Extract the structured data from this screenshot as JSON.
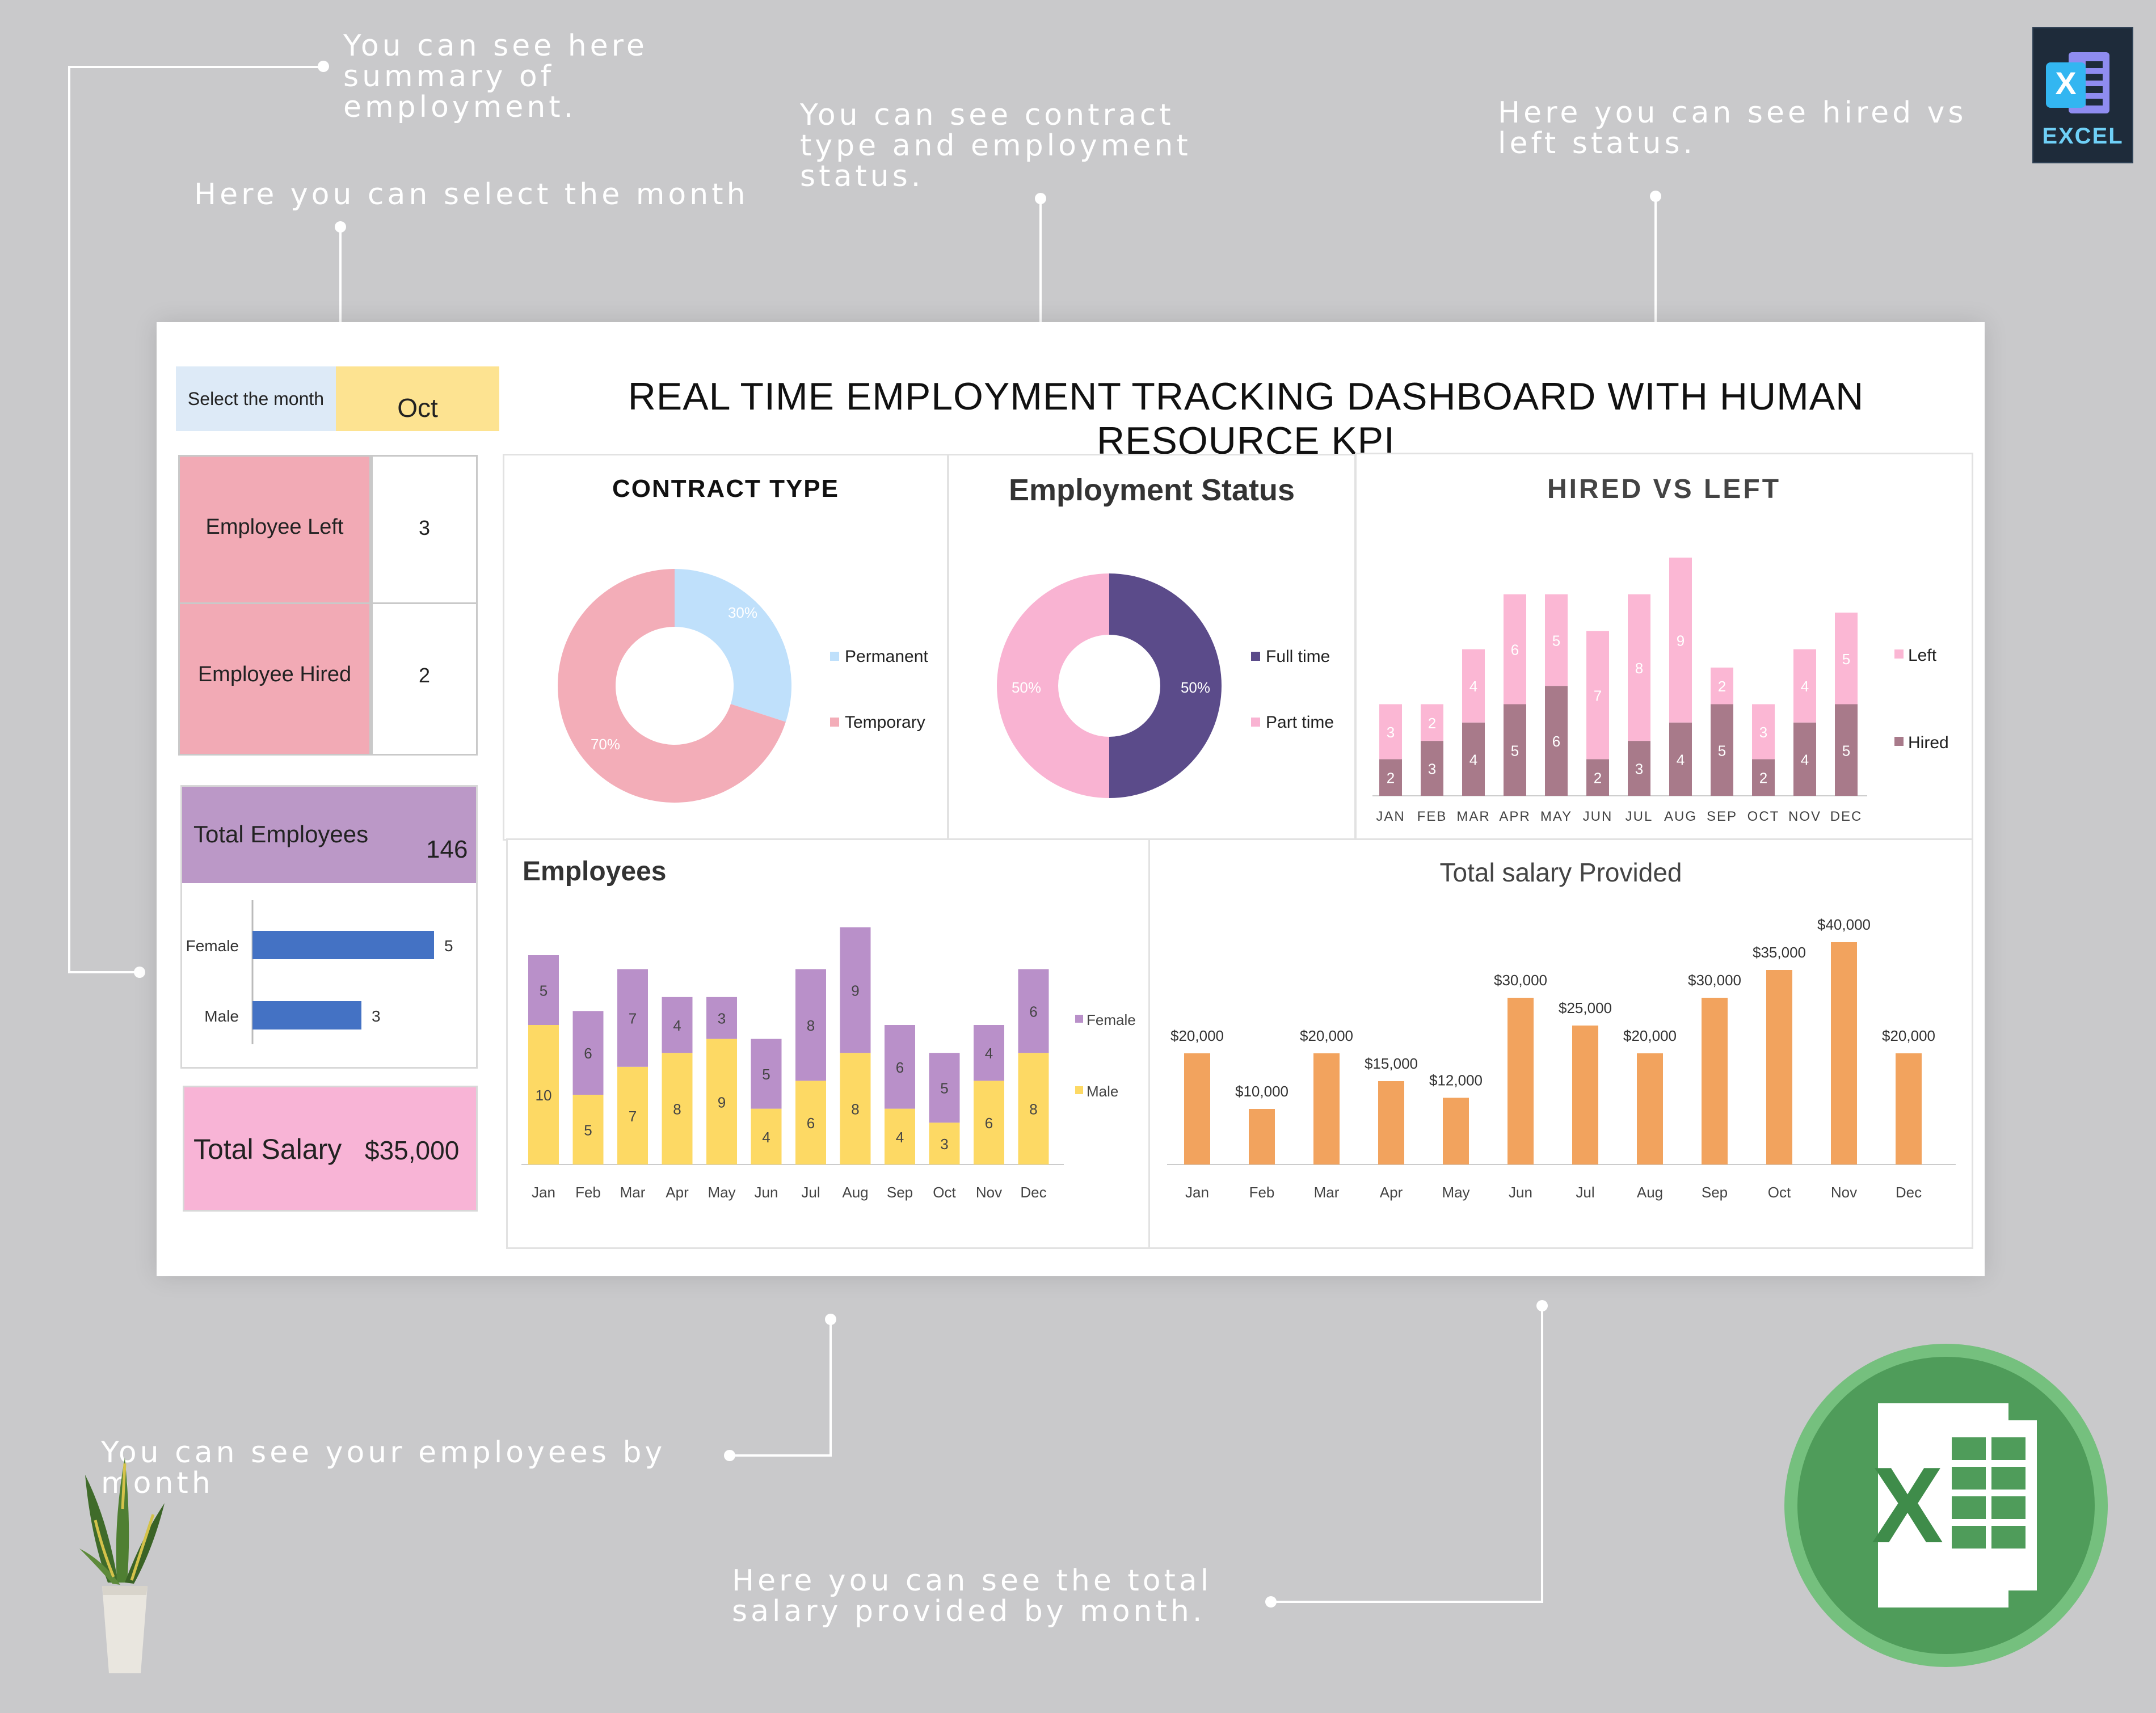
{
  "callouts": {
    "summary": "You can see here summary of employment.",
    "select_month": "Here you can select the month",
    "contract": "You can see contract type and employment status.",
    "hired_left": "Here you can see hired vs left status.",
    "employees_by_month": "You can see your  employees by month",
    "salary_by_month": "Here you can see the total salary provided by month."
  },
  "badge": {
    "label": "EXCEL",
    "letter": "X"
  },
  "dashboard": {
    "title": "REAL TIME EMPLOYMENT TRACKING DASHBOARD WITH HUMAN RESOURCE KPI",
    "select_label": "Select the month",
    "selected_month": "Oct",
    "employee_left_label": "Employee Left",
    "employee_left_value": "3",
    "employee_hired_label": "Employee Hired",
    "employee_hired_value": "2",
    "total_employees_label": "Total Employees",
    "total_employees_value": "146",
    "total_salary_label": "Total Salary",
    "total_salary_value": "$35,000"
  },
  "colors": {
    "left_box": "#f2aab5",
    "purple": "#bb98c7",
    "pink": "#f8b4d6",
    "select_bg": "#ddeaf7",
    "month_bg": "#fde391",
    "bar_blue": "#4472c4",
    "salary_orange": "#f2a35e",
    "female_purple": "#b990c9",
    "male_yellow": "#fdd964",
    "hired_mauve": "#a87a8a",
    "left_pink": "#fbb7d4",
    "permanent": "#bfe0fb",
    "temporary": "#f3adb8",
    "fulltime": "#5b4b8a",
    "parttime": "#f9b3d2"
  },
  "chart_data": [
    {
      "type": "bar",
      "orientation": "horizontal",
      "categories": [
        "Female",
        "Male"
      ],
      "values": [
        5,
        3
      ]
    },
    {
      "type": "pie",
      "title": "CONTRACT TYPE",
      "labels": [
        "Permanent",
        "Temporary"
      ],
      "values": [
        30,
        70
      ],
      "value_labels": [
        "30%",
        "70%"
      ]
    },
    {
      "type": "pie",
      "title": "Employment Status",
      "labels": [
        "Full time",
        "Part time"
      ],
      "values": [
        50,
        50
      ],
      "value_labels": [
        "50%",
        "50%"
      ]
    },
    {
      "type": "bar",
      "stacked": true,
      "title": "HIRED VS LEFT",
      "categories": [
        "JAN",
        "FEB",
        "MAR",
        "APR",
        "MAY",
        "JUN",
        "JUL",
        "AUG",
        "SEP",
        "OCT",
        "NOV",
        "DEC"
      ],
      "series": [
        {
          "name": "Hired",
          "values": [
            2,
            3,
            4,
            5,
            6,
            2,
            3,
            4,
            5,
            2,
            4,
            5
          ]
        },
        {
          "name": "Left",
          "values": [
            3,
            2,
            4,
            6,
            5,
            7,
            8,
            9,
            2,
            3,
            4,
            5
          ]
        }
      ]
    },
    {
      "type": "bar",
      "stacked": true,
      "title": "Employees",
      "categories": [
        "Jan",
        "Feb",
        "Mar",
        "Apr",
        "May",
        "Jun",
        "Jul",
        "Aug",
        "Sep",
        "Oct",
        "Nov",
        "Dec"
      ],
      "series": [
        {
          "name": "Male",
          "values": [
            10,
            5,
            7,
            8,
            9,
            4,
            6,
            8,
            4,
            3,
            6,
            8
          ]
        },
        {
          "name": "Female",
          "values": [
            5,
            6,
            7,
            4,
            3,
            5,
            8,
            9,
            6,
            5,
            4,
            6
          ]
        }
      ]
    },
    {
      "type": "bar",
      "title": "Total salary Provided",
      "categories": [
        "Jan",
        "Feb",
        "Mar",
        "Apr",
        "May",
        "Jun",
        "Jul",
        "Aug",
        "Sep",
        "Oct",
        "Nov",
        "Dec"
      ],
      "values": [
        20000,
        10000,
        20000,
        15000,
        12000,
        30000,
        25000,
        20000,
        30000,
        35000,
        40000,
        20000
      ],
      "value_labels": [
        "$20,000",
        "$10,000",
        "$20,000",
        "$15,000",
        "$12,000",
        "$30,000",
        "$25,000",
        "$20,000",
        "$30,000",
        "$35,000",
        "$40,000",
        "$20,000"
      ]
    }
  ]
}
